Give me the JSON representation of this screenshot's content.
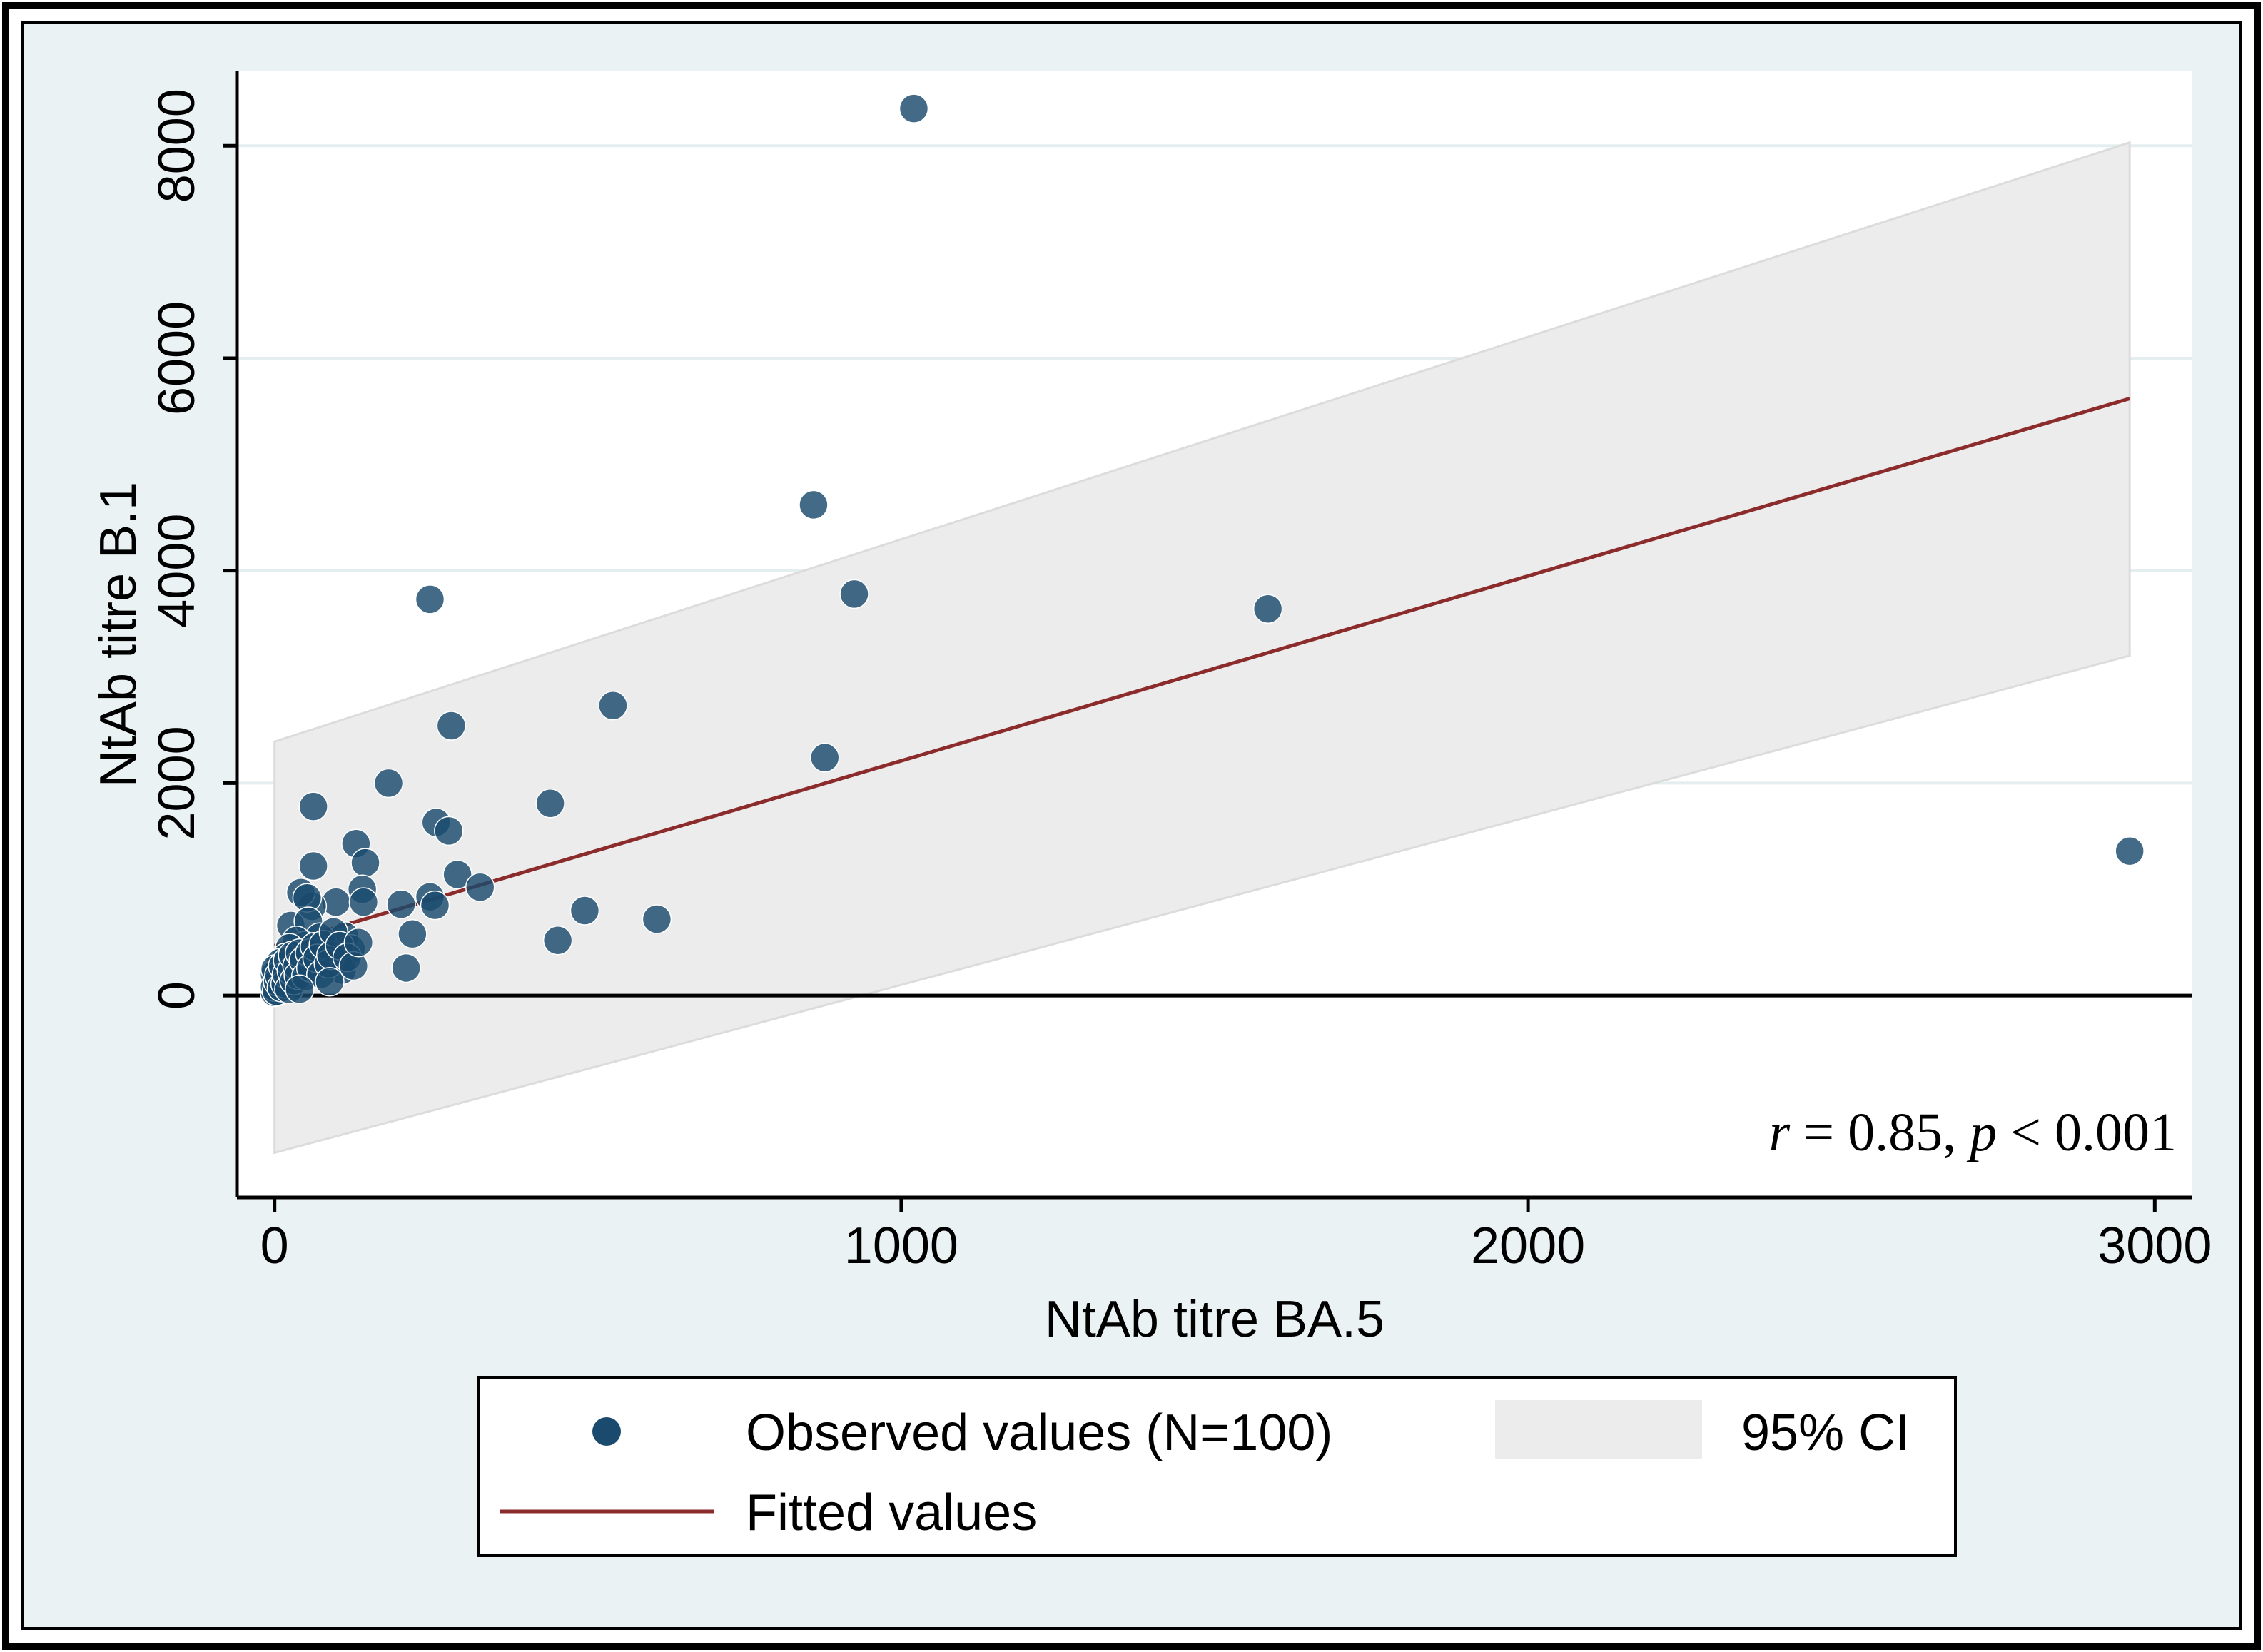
{
  "chart_data": {
    "type": "scatter",
    "title": "",
    "xlabel": "NtAb titre BA.5",
    "ylabel": "NtAb titre B.1",
    "xlim": [
      -60,
      3060
    ],
    "ylim": [
      -1900,
      8700
    ],
    "xticks": [
      0,
      1000,
      2000,
      3000
    ],
    "yticks": [
      0,
      2000,
      4000,
      6000,
      8000
    ],
    "xtick_labels": [
      "0",
      "1000",
      "2000",
      "3000"
    ],
    "ytick_labels": [
      "0",
      "2000",
      "4000",
      "6000",
      "8000"
    ],
    "gridlines": "horizontal",
    "reference_line_y": 0,
    "legend_position": "bottom",
    "annotation": {
      "r_symbol": "r",
      "equals_value": " = 0.85, ",
      "p_symbol": "p",
      "rest": " < 0.001"
    },
    "series": [
      {
        "name": "Observed values (N=100)",
        "kind": "scatter",
        "color": "#1a4a6e",
        "points": [
          [
            1020,
            8350
          ],
          [
            860,
            4620
          ],
          [
            248,
            3730
          ],
          [
            925,
            3780
          ],
          [
            1585,
            3640
          ],
          [
            2960,
            1360
          ],
          [
            540,
            2730
          ],
          [
            282,
            2540
          ],
          [
            878,
            2240
          ],
          [
            182,
            2000
          ],
          [
            440,
            1810
          ],
          [
            62,
            1780
          ],
          [
            258,
            1630
          ],
          [
            278,
            1550
          ],
          [
            130,
            1430
          ],
          [
            145,
            1250
          ],
          [
            62,
            1220
          ],
          [
            292,
            1140
          ],
          [
            328,
            1020
          ],
          [
            140,
            1000
          ],
          [
            248,
            930
          ],
          [
            98,
            880
          ],
          [
            142,
            880
          ],
          [
            202,
            860
          ],
          [
            256,
            850
          ],
          [
            60,
            840
          ],
          [
            42,
            970
          ],
          [
            52,
            920
          ],
          [
            26,
            660
          ],
          [
            54,
            700
          ],
          [
            495,
            800
          ],
          [
            610,
            720
          ],
          [
            452,
            520
          ],
          [
            220,
            580
          ],
          [
            210,
            260
          ],
          [
            112,
            560
          ],
          [
            122,
            440
          ],
          [
            102,
            350
          ],
          [
            108,
            240
          ],
          [
            82,
            420
          ],
          [
            72,
            550
          ],
          [
            66,
            300
          ],
          [
            48,
            470
          ],
          [
            44,
            240
          ],
          [
            35,
            520
          ],
          [
            32,
            380
          ],
          [
            28,
            160
          ],
          [
            25,
            300
          ],
          [
            24,
            450
          ],
          [
            22,
            220
          ],
          [
            20,
            120
          ],
          [
            18,
            360
          ],
          [
            16,
            90
          ],
          [
            14,
            260
          ],
          [
            12,
            180
          ],
          [
            10,
            60
          ],
          [
            9,
            310
          ],
          [
            8,
            140
          ],
          [
            6,
            40
          ],
          [
            5,
            220
          ],
          [
            4,
            100
          ],
          [
            3,
            170
          ],
          [
            2,
            60
          ],
          [
            1,
            120
          ],
          [
            0,
            30
          ],
          [
            0,
            200
          ],
          [
            0,
            80
          ],
          [
            1,
            250
          ],
          [
            3,
            40
          ],
          [
            5,
            130
          ],
          [
            7,
            190
          ],
          [
            11,
            75
          ],
          [
            13,
            280
          ],
          [
            17,
            110
          ],
          [
            19,
            200
          ],
          [
            21,
            330
          ],
          [
            23,
            60
          ],
          [
            27,
            230
          ],
          [
            29,
            380
          ],
          [
            31,
            140
          ],
          [
            36,
            280
          ],
          [
            38,
            190
          ],
          [
            40,
            400
          ],
          [
            46,
            330
          ],
          [
            50,
            180
          ],
          [
            56,
            400
          ],
          [
            58,
            260
          ],
          [
            64,
            460
          ],
          [
            68,
            350
          ],
          [
            74,
            200
          ],
          [
            78,
            480
          ],
          [
            86,
            300
          ],
          [
            90,
            380
          ],
          [
            94,
            600
          ],
          [
            104,
            470
          ],
          [
            116,
            360
          ],
          [
            126,
            280
          ],
          [
            134,
            500
          ],
          [
            88,
            130
          ],
          [
            40,
            60
          ]
        ]
      },
      {
        "name": "Fitted values",
        "kind": "line",
        "color": "#8b2b2b",
        "x": [
          0,
          2960
        ],
        "y": [
          470,
          5620
        ]
      },
      {
        "name": "95% CI",
        "kind": "band",
        "color": "#ececec",
        "x": [
          0,
          2960
        ],
        "upper": [
          2390,
          8030
        ],
        "lower": [
          -1480,
          3200
        ]
      }
    ]
  }
}
